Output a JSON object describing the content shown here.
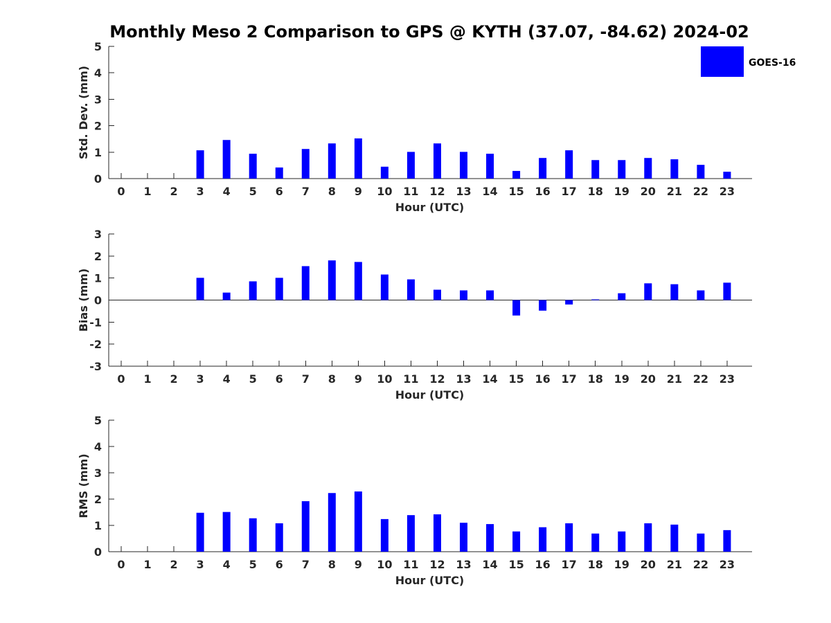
{
  "chart_data": {
    "title": "Monthly Meso 2 Comparison to GPS @ KYTH (37.07, -84.62) 2024-02",
    "legend": {
      "label": "GOES-16",
      "color": "#0000ff",
      "placement": "top-right"
    },
    "subplots": [
      {
        "type": "bar",
        "id": "std",
        "ylabel": "Std. Dev. (mm)",
        "xlabel": "Hour (UTC)",
        "ylim": [
          0,
          5
        ],
        "yticks": [
          0,
          1,
          2,
          3,
          4,
          5
        ],
        "categories": [
          "0",
          "1",
          "2",
          "3",
          "4",
          "5",
          "6",
          "7",
          "8",
          "9",
          "10",
          "11",
          "12",
          "13",
          "14",
          "15",
          "16",
          "17",
          "18",
          "19",
          "20",
          "21",
          "22",
          "23"
        ],
        "series": [
          {
            "name": "GOES-16",
            "values": [
              null,
              null,
              null,
              1.07,
              1.46,
              0.94,
              0.42,
              1.12,
              1.33,
              1.52,
              0.45,
              1.01,
              1.33,
              1.01,
              0.94,
              0.29,
              0.78,
              1.07,
              0.7,
              0.7,
              0.78,
              0.73,
              0.52,
              0.26
            ]
          }
        ]
      },
      {
        "type": "bar",
        "id": "bias",
        "ylabel": "Bias (mm)",
        "xlabel": "Hour (UTC)",
        "ylim": [
          -3,
          3
        ],
        "yticks": [
          -3,
          -2,
          -1,
          0,
          1,
          2,
          3
        ],
        "categories": [
          "0",
          "1",
          "2",
          "3",
          "4",
          "5",
          "6",
          "7",
          "8",
          "9",
          "10",
          "11",
          "12",
          "13",
          "14",
          "15",
          "16",
          "17",
          "18",
          "19",
          "20",
          "21",
          "22",
          "23"
        ],
        "series": [
          {
            "name": "GOES-16",
            "values": [
              null,
              null,
              null,
              1.01,
              0.34,
              0.85,
              1.01,
              1.54,
              1.8,
              1.73,
              1.16,
              0.94,
              0.47,
              0.44,
              0.44,
              -0.7,
              -0.48,
              -0.2,
              0.03,
              0.31,
              0.76,
              0.72,
              0.44,
              0.79
            ]
          }
        ]
      },
      {
        "type": "bar",
        "id": "rms",
        "ylabel": "RMS (mm)",
        "xlabel": "Hour (UTC)",
        "ylim": [
          0,
          5
        ],
        "yticks": [
          0,
          1,
          2,
          3,
          4,
          5
        ],
        "categories": [
          "0",
          "1",
          "2",
          "3",
          "4",
          "5",
          "6",
          "7",
          "8",
          "9",
          "10",
          "11",
          "12",
          "13",
          "14",
          "15",
          "16",
          "17",
          "18",
          "19",
          "20",
          "21",
          "22",
          "23"
        ],
        "series": [
          {
            "name": "GOES-16",
            "values": [
              null,
              null,
              null,
              1.48,
              1.51,
              1.27,
              1.08,
              1.92,
              2.23,
              2.29,
              1.24,
              1.39,
              1.42,
              1.1,
              1.05,
              0.77,
              0.93,
              1.08,
              0.69,
              0.77,
              1.08,
              1.03,
              0.69,
              0.82
            ]
          }
        ]
      }
    ]
  }
}
